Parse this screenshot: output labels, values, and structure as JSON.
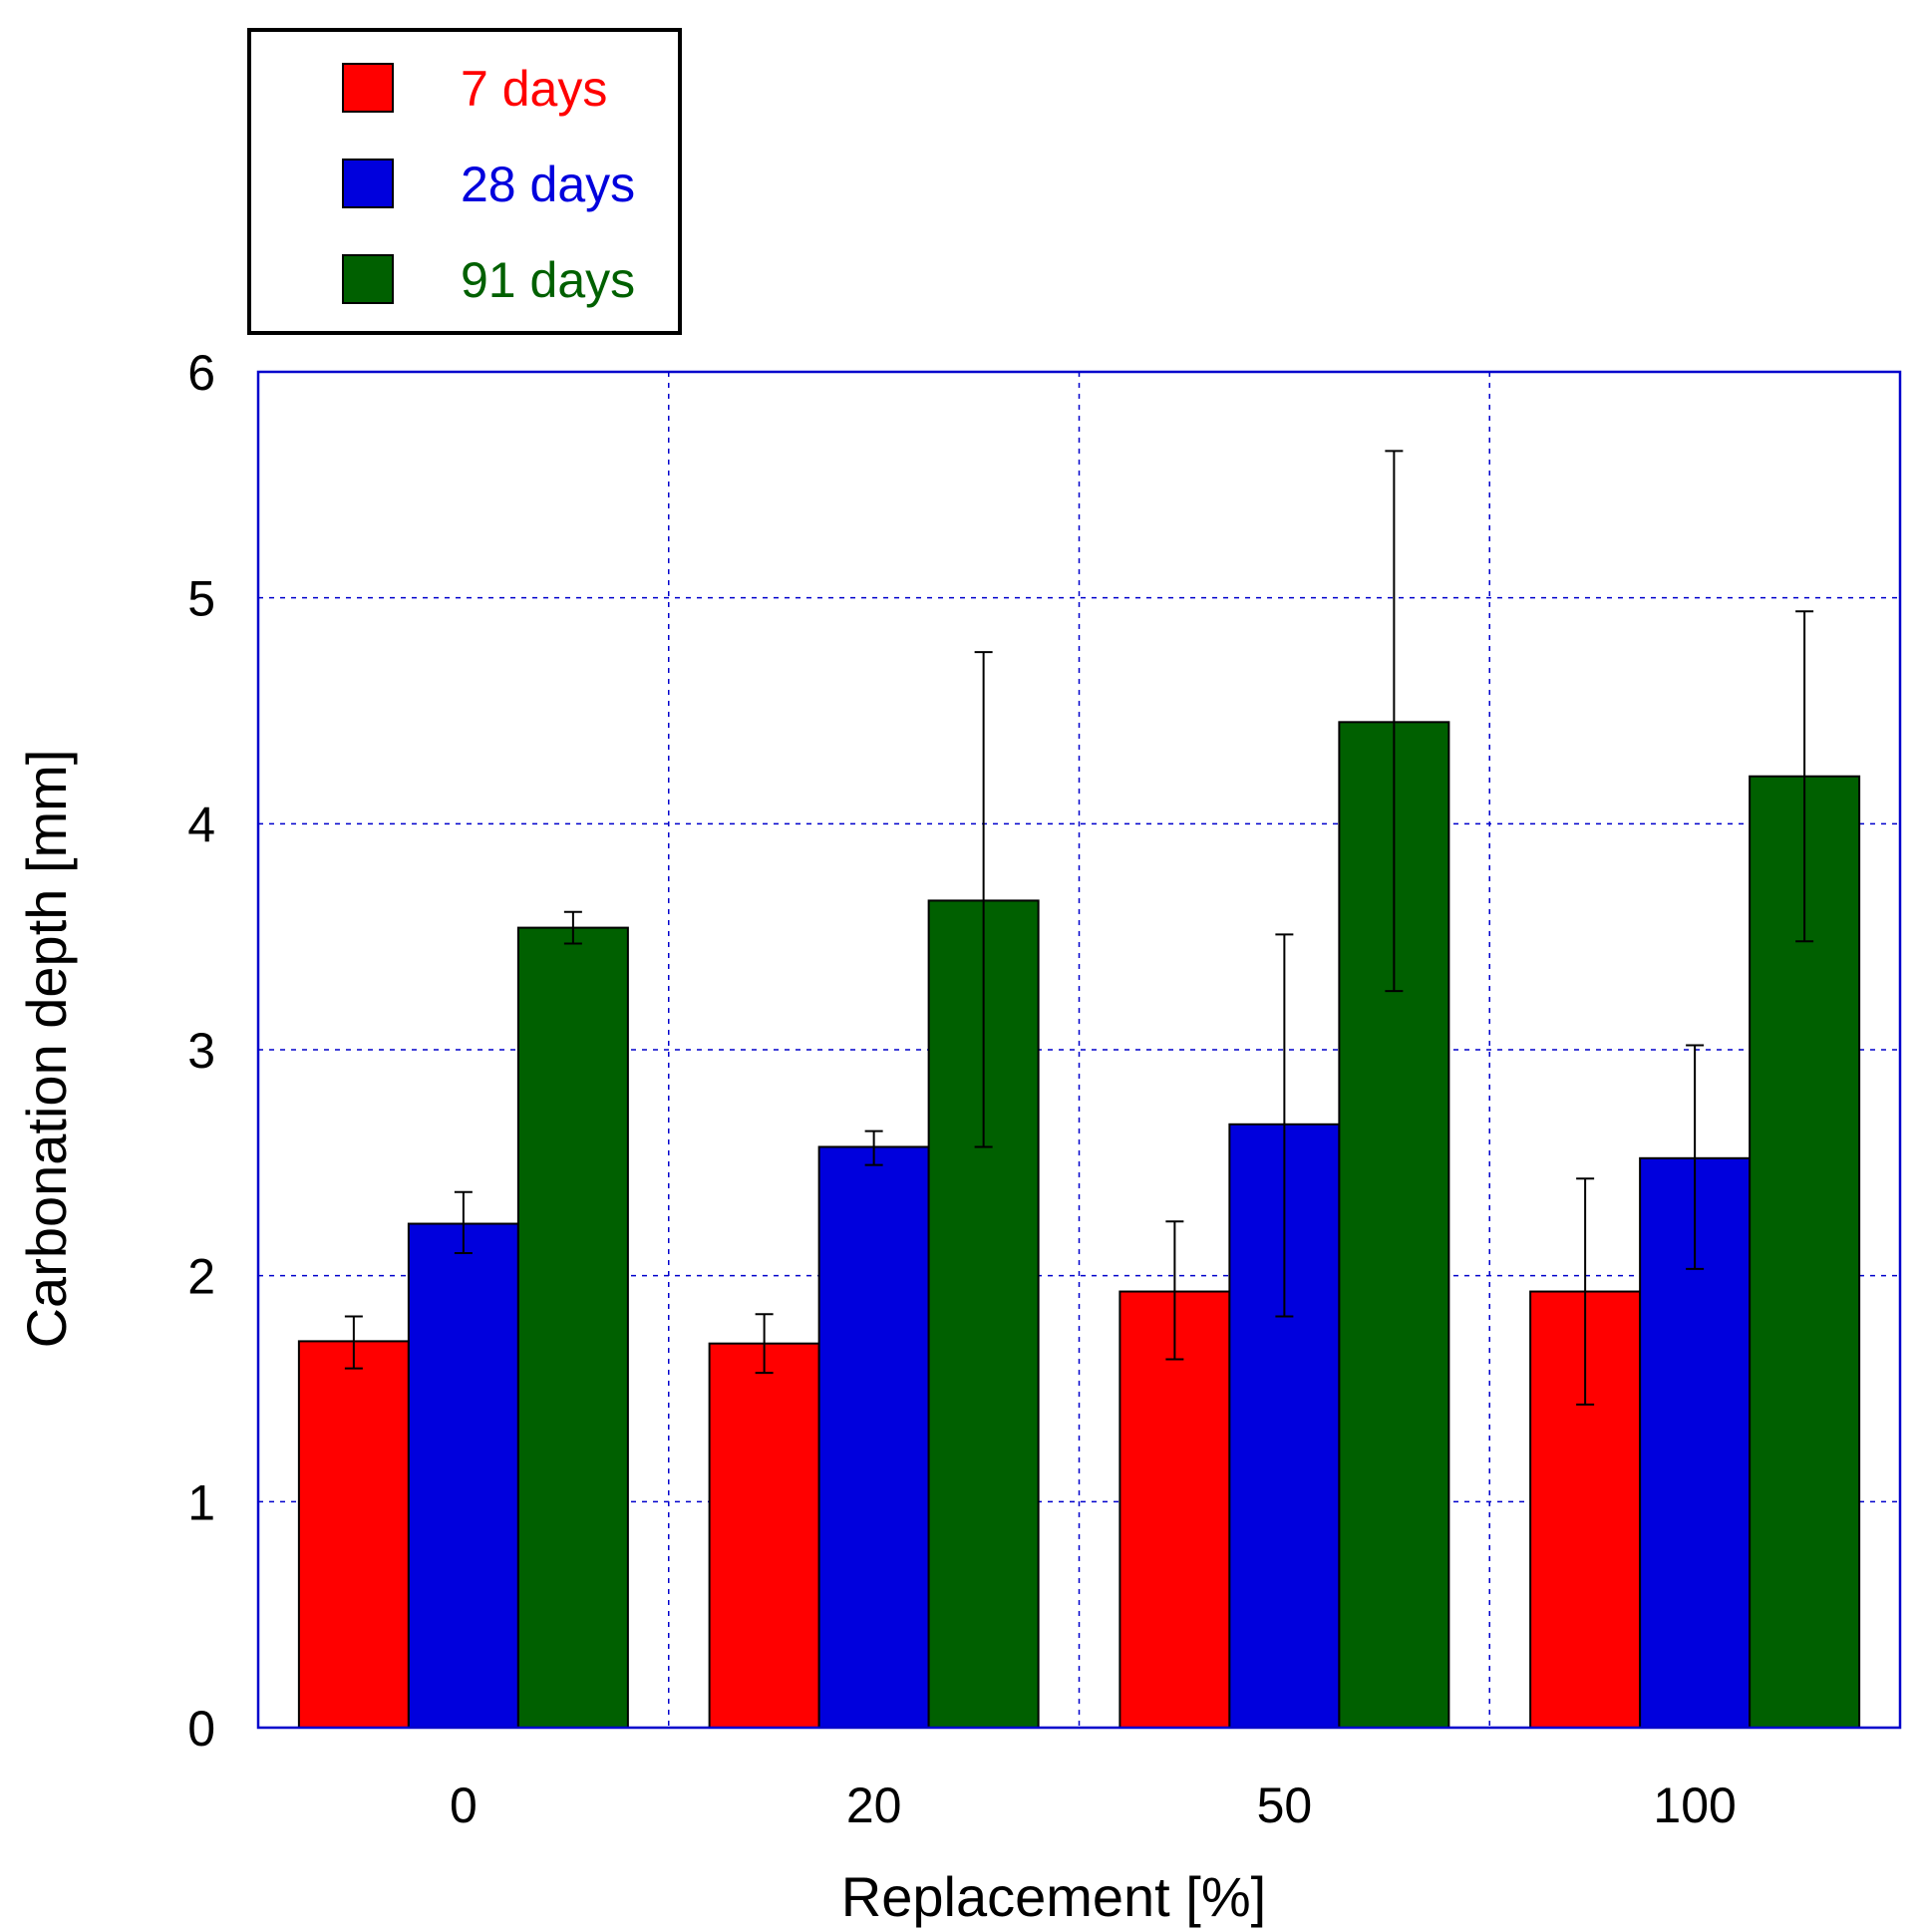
{
  "chart_data": {
    "type": "bar",
    "categories": [
      "0",
      "20",
      "50",
      "100"
    ],
    "xlabel": "Replacement [%]",
    "ylabel": "Carbonation depth [mm]",
    "ylim": [
      0,
      6
    ],
    "yticks": [
      "0",
      "1",
      "2",
      "3",
      "4",
      "5",
      "6"
    ],
    "grid": true,
    "legend_position": "top-left",
    "series": [
      {
        "name": "7 days",
        "color": "#ff0000",
        "values": [
          1.71,
          1.7,
          1.93,
          1.93
        ],
        "err_low": [
          1.59,
          1.57,
          1.63,
          1.43
        ],
        "err_high": [
          1.82,
          1.83,
          2.24,
          2.43
        ]
      },
      {
        "name": "28 days",
        "color": "#0000dd",
        "values": [
          2.23,
          2.57,
          2.67,
          2.52
        ],
        "err_low": [
          2.1,
          2.49,
          1.82,
          2.03
        ],
        "err_high": [
          2.37,
          2.64,
          3.51,
          3.02
        ]
      },
      {
        "name": "91 days",
        "color": "#006000",
        "values": [
          3.54,
          3.66,
          4.45,
          4.21
        ],
        "err_low": [
          3.47,
          2.57,
          3.26,
          3.48
        ],
        "err_high": [
          3.61,
          4.76,
          5.65,
          4.94
        ]
      }
    ]
  }
}
